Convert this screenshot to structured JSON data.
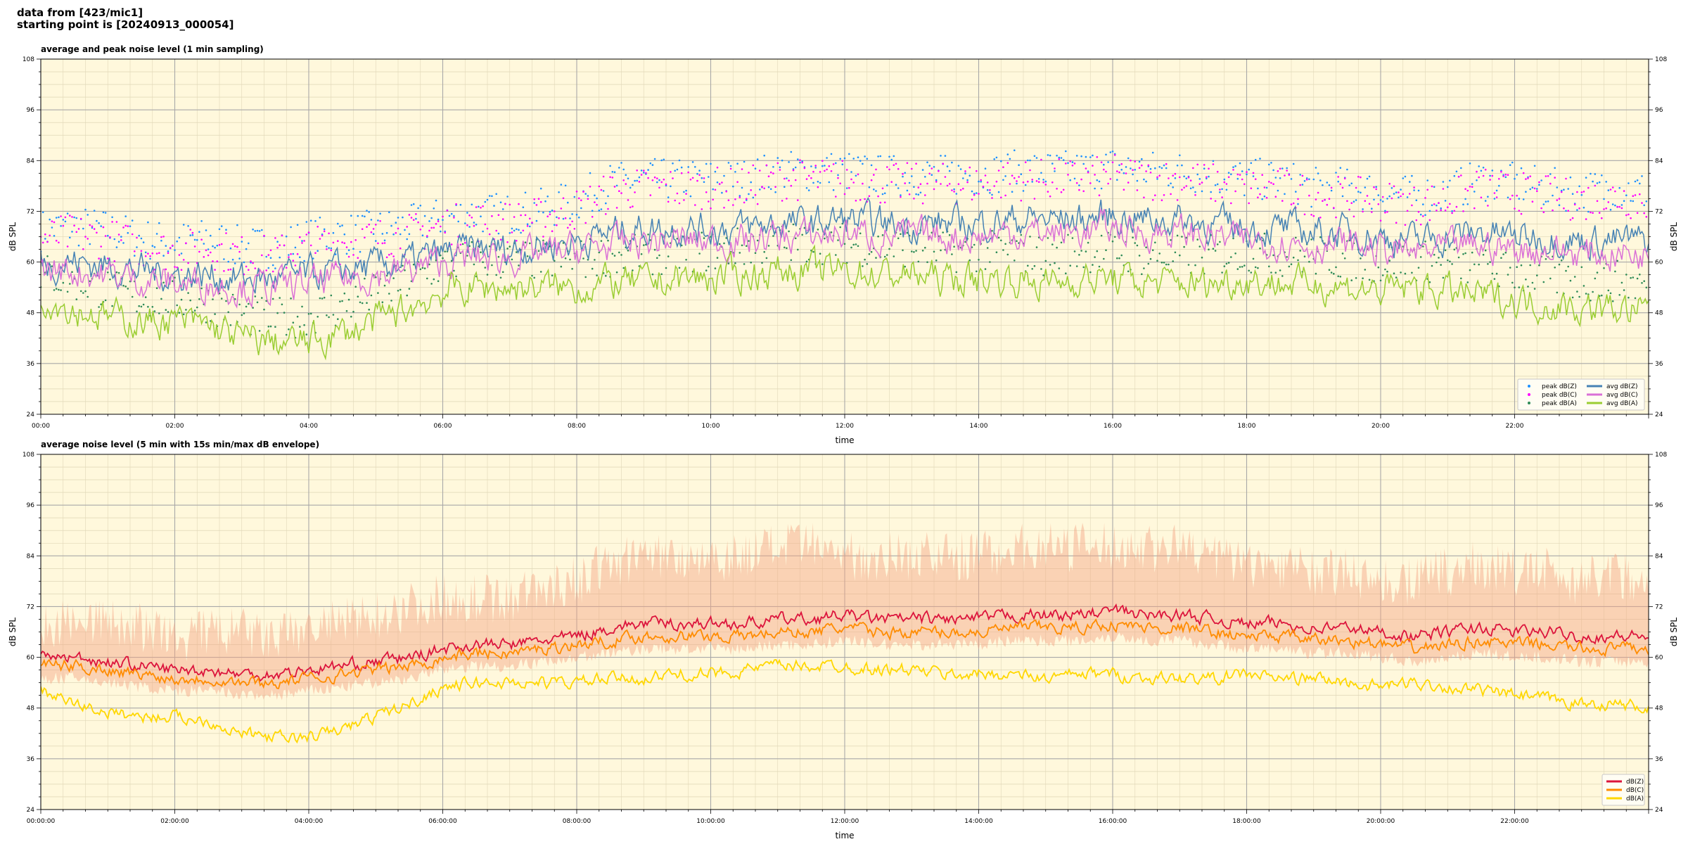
{
  "header": {
    "line1": "data from [423/mic1]",
    "line2": "starting point is [20240913_000054]"
  },
  "colors": {
    "background": "#fff8dc",
    "peak_z": "#1e90ff",
    "peak_c": "#ff00ff",
    "peak_a": "#2e8b57",
    "avg_z": "#4682b4",
    "avg_c": "#da70d6",
    "avg_a": "#9acd32",
    "dbz": "#dc143c",
    "dbc": "#ff8c00",
    "dba": "#ffd700",
    "envelope": "#f4a582"
  },
  "chart_data": [
    {
      "type": "line",
      "title": "average and peak noise level (1 min sampling)",
      "xlabel": "time",
      "ylabel": "dB SPL",
      "ylim": [
        24,
        108
      ],
      "xlim_hours": [
        0,
        24
      ],
      "yticks": [
        24,
        36,
        48,
        60,
        72,
        84,
        96,
        108
      ],
      "xtick_labels": [
        "00:00",
        "02:00",
        "04:00",
        "06:00",
        "08:00",
        "10:00",
        "12:00",
        "14:00",
        "16:00",
        "18:00",
        "20:00",
        "22:00"
      ],
      "grid": true,
      "legend_position": "bottom-right",
      "legend": [
        "peak dB(Z)",
        "peak dB(C)",
        "peak dB(A)",
        "avg dB(Z)",
        "avg dB(C)",
        "avg dB(A)"
      ],
      "x_hours": [
        0,
        0.5,
        1,
        1.5,
        2,
        2.5,
        3,
        3.5,
        4,
        4.5,
        5,
        5.5,
        6,
        6.5,
        7,
        7.5,
        8,
        8.5,
        9,
        9.5,
        10,
        10.5,
        11,
        11.5,
        12,
        12.5,
        13,
        13.5,
        14,
        14.5,
        15,
        15.5,
        16,
        16.5,
        17,
        17.5,
        18,
        18.5,
        19,
        19.5,
        20,
        20.5,
        21,
        21.5,
        22,
        22.5,
        23,
        23.5,
        24
      ],
      "series": [
        {
          "name": "avg dB(Z)",
          "style": "line",
          "values": [
            60,
            60,
            59,
            58,
            57,
            57,
            56,
            56,
            57,
            58,
            59,
            60,
            62,
            63,
            63,
            64,
            65,
            67,
            68,
            68,
            68,
            68,
            69,
            69,
            70,
            69,
            69,
            69,
            69,
            70,
            70,
            70,
            71,
            70,
            70,
            69,
            68,
            68,
            67,
            67,
            66,
            65,
            66,
            67,
            66,
            66,
            65,
            65,
            65
          ]
        },
        {
          "name": "avg dB(C)",
          "style": "line",
          "values": [
            58,
            58,
            57,
            56,
            55,
            55,
            54,
            54,
            55,
            56,
            57,
            58,
            60,
            61,
            61,
            62,
            63,
            64,
            65,
            65,
            65,
            65,
            66,
            66,
            67,
            66,
            66,
            66,
            66,
            67,
            67,
            67,
            68,
            67,
            67,
            66,
            65,
            65,
            64,
            64,
            63,
            62,
            63,
            64,
            63,
            63,
            62,
            62,
            62
          ]
        },
        {
          "name": "avg dB(A)",
          "style": "line",
          "values": [
            52,
            49,
            47,
            46,
            46,
            45,
            42,
            41,
            41,
            43,
            46,
            49,
            53,
            54,
            54,
            54,
            54,
            55,
            55,
            56,
            56,
            57,
            58,
            58,
            58,
            57,
            57,
            56,
            56,
            56,
            55,
            56,
            56,
            55,
            55,
            55,
            56,
            55,
            55,
            54,
            53,
            54,
            53,
            52,
            51,
            50,
            49,
            49,
            48
          ]
        },
        {
          "name": "peak dB(Z)",
          "style": "scatter",
          "values": [
            66,
            67,
            66,
            64,
            63,
            64,
            62,
            62,
            64,
            65,
            66,
            67,
            69,
            70,
            70,
            71,
            73,
            77,
            78,
            78,
            78,
            78,
            80,
            80,
            80,
            79,
            79,
            79,
            79,
            80,
            80,
            80,
            81,
            80,
            80,
            79,
            78,
            78,
            76,
            76,
            75,
            74,
            75,
            78,
            77,
            76,
            75,
            76,
            75
          ]
        },
        {
          "name": "peak dB(C)",
          "style": "scatter",
          "values": [
            64,
            65,
            64,
            62,
            61,
            62,
            60,
            60,
            62,
            63,
            64,
            65,
            67,
            68,
            68,
            69,
            71,
            75,
            76,
            76,
            76,
            76,
            78,
            78,
            78,
            77,
            77,
            77,
            77,
            78,
            78,
            78,
            79,
            78,
            78,
            77,
            76,
            76,
            74,
            74,
            73,
            72,
            73,
            76,
            75,
            74,
            73,
            74,
            73
          ]
        },
        {
          "name": "peak dB(A)",
          "style": "scatter",
          "values": [
            56,
            54,
            52,
            50,
            50,
            49,
            46,
            45,
            46,
            48,
            51,
            54,
            58,
            59,
            59,
            59,
            59,
            60,
            60,
            61,
            61,
            62,
            63,
            63,
            63,
            62,
            62,
            61,
            61,
            61,
            60,
            61,
            61,
            60,
            60,
            60,
            61,
            60,
            60,
            59,
            58,
            59,
            58,
            57,
            56,
            55,
            54,
            54,
            53
          ]
        }
      ]
    },
    {
      "type": "line",
      "title": "average noise level (5 min with 15s min/max dB envelope)",
      "xlabel": "time",
      "ylabel": "dB SPL",
      "ylim": [
        24,
        108
      ],
      "xlim_hours": [
        0,
        24
      ],
      "yticks": [
        24,
        36,
        48,
        60,
        72,
        84,
        96,
        108
      ],
      "xtick_labels": [
        "00:00:00",
        "02:00:00",
        "04:00:00",
        "06:00:00",
        "08:00:00",
        "10:00:00",
        "12:00:00",
        "14:00:00",
        "16:00:00",
        "18:00:00",
        "20:00:00",
        "22:00:00"
      ],
      "grid": true,
      "legend_position": "bottom-right",
      "legend": [
        "dB(Z)",
        "dB(C)",
        "dB(A)"
      ],
      "x_hours": [
        0,
        0.5,
        1,
        1.5,
        2,
        2.5,
        3,
        3.5,
        4,
        4.5,
        5,
        5.5,
        6,
        6.5,
        7,
        7.5,
        8,
        8.5,
        9,
        9.5,
        10,
        10.5,
        11,
        11.5,
        12,
        12.5,
        13,
        13.5,
        14,
        14.5,
        15,
        15.5,
        16,
        16.5,
        17,
        17.5,
        18,
        18.5,
        19,
        19.5,
        20,
        20.5,
        21,
        21.5,
        22,
        22.5,
        23,
        23.5,
        24
      ],
      "series": [
        {
          "name": "dB(Z)",
          "values": [
            60,
            60,
            59,
            58,
            57,
            57,
            56,
            56,
            57,
            58,
            59,
            60,
            62,
            63,
            63,
            64,
            65,
            67,
            68,
            68,
            68,
            68,
            69,
            69,
            70,
            69,
            69,
            69,
            69,
            70,
            70,
            70,
            71,
            70,
            70,
            69,
            68,
            68,
            67,
            67,
            66,
            65,
            66,
            67,
            66,
            66,
            65,
            65,
            65
          ]
        },
        {
          "name": "dB(C)",
          "values": [
            58,
            58,
            57,
            56,
            55,
            55,
            54,
            54,
            55,
            56,
            57,
            58,
            60,
            61,
            61,
            62,
            63,
            64,
            65,
            65,
            65,
            65,
            66,
            66,
            67,
            66,
            66,
            66,
            66,
            67,
            67,
            67,
            68,
            67,
            67,
            66,
            65,
            65,
            64,
            64,
            63,
            62,
            63,
            64,
            63,
            63,
            62,
            62,
            62
          ]
        },
        {
          "name": "dB(A)",
          "values": [
            52,
            49,
            47,
            46,
            46,
            45,
            42,
            41,
            41,
            43,
            46,
            49,
            53,
            54,
            54,
            54,
            54,
            55,
            55,
            56,
            56,
            57,
            58,
            58,
            58,
            57,
            57,
            56,
            56,
            56,
            55,
            56,
            56,
            55,
            55,
            55,
            56,
            55,
            55,
            54,
            53,
            54,
            53,
            52,
            51,
            50,
            49,
            49,
            48
          ]
        }
      ],
      "envelope": {
        "min": [
          55,
          55,
          54,
          53,
          52,
          52,
          51,
          51,
          52,
          53,
          54,
          55,
          57,
          58,
          58,
          59,
          60,
          61,
          62,
          62,
          62,
          62,
          63,
          63,
          64,
          63,
          63,
          63,
          63,
          64,
          64,
          64,
          65,
          64,
          64,
          63,
          62,
          62,
          61,
          61,
          60,
          59,
          60,
          61,
          60,
          60,
          59,
          59,
          59
        ],
        "max": [
          66,
          70,
          68,
          67,
          64,
          66,
          66,
          64,
          67,
          68,
          70,
          72,
          74,
          74,
          74,
          76,
          78,
          82,
          84,
          84,
          84,
          84,
          86,
          86,
          84,
          84,
          84,
          84,
          84,
          86,
          86,
          86,
          86,
          86,
          86,
          84,
          82,
          82,
          80,
          80,
          78,
          78,
          80,
          82,
          80,
          80,
          78,
          80,
          78
        ]
      }
    }
  ]
}
